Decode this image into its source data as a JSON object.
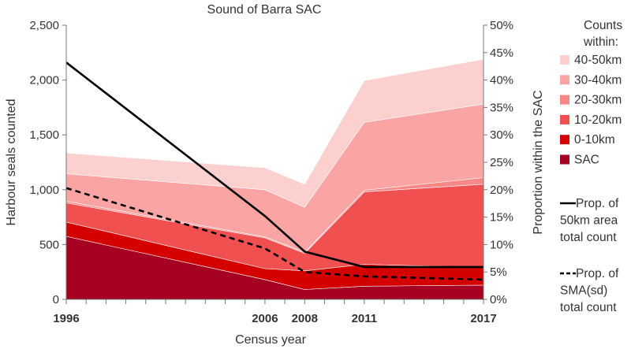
{
  "chart_data": {
    "type": "area",
    "title": "Sound of Barra SAC",
    "xlabel": "Census year",
    "ylabel": "Harbour seals counted",
    "y2label": "Proportion within the SAC",
    "x": [
      1996,
      2006,
      2008,
      2011,
      2017
    ],
    "x_tick_labels": [
      "1996",
      "2006",
      "2008",
      "2011",
      "2017"
    ],
    "ylim": [
      0,
      2500
    ],
    "y_ticks": [
      "0",
      "500",
      "1,000",
      "1,500",
      "2,000",
      "2,500"
    ],
    "y2lim": [
      0,
      50
    ],
    "y2_ticks": [
      "0%",
      "5%",
      "10%",
      "15%",
      "20%",
      "25%",
      "30%",
      "35%",
      "40%",
      "45%",
      "50%"
    ],
    "legend_title": "Counts\nwithin:",
    "legend_position": "right",
    "series": [
      {
        "name": "SAC",
        "kind": "stacked-area",
        "color": "#a50021",
        "values": [
          575,
          180,
          90,
          120,
          130
        ]
      },
      {
        "name": "0-10km",
        "kind": "stacked-area",
        "color": "#d40000",
        "values": [
          130,
          100,
          170,
          200,
          160
        ]
      },
      {
        "name": "10-20km",
        "kind": "stacked-area",
        "color": "#f05050",
        "values": [
          175,
          280,
          160,
          660,
          760
        ]
      },
      {
        "name": "20-30km",
        "kind": "stacked-area",
        "color": "#f88888",
        "values": [
          15,
          10,
          10,
          15,
          60
        ]
      },
      {
        "name": "30-40km",
        "kind": "stacked-area",
        "color": "#fba4a4",
        "values": [
          250,
          430,
          410,
          620,
          670
        ]
      },
      {
        "name": "40-50km",
        "kind": "stacked-area",
        "color": "#fdd0d0",
        "values": [
          190,
          200,
          210,
          380,
          410
        ]
      },
      {
        "name": "Prop. of\n50km area\ntotal count",
        "kind": "line",
        "axis": "right",
        "style": "solid",
        "color": "#000000",
        "values": [
          43.2,
          15.2,
          8.7,
          5.9,
          5.9
        ]
      },
      {
        "name": "Prop. of\nSMA(sd)\ntotal count",
        "kind": "line",
        "axis": "right",
        "style": "dashed",
        "color": "#000000",
        "values": [
          20.3,
          9.3,
          5.0,
          4.2,
          3.6
        ]
      }
    ]
  }
}
